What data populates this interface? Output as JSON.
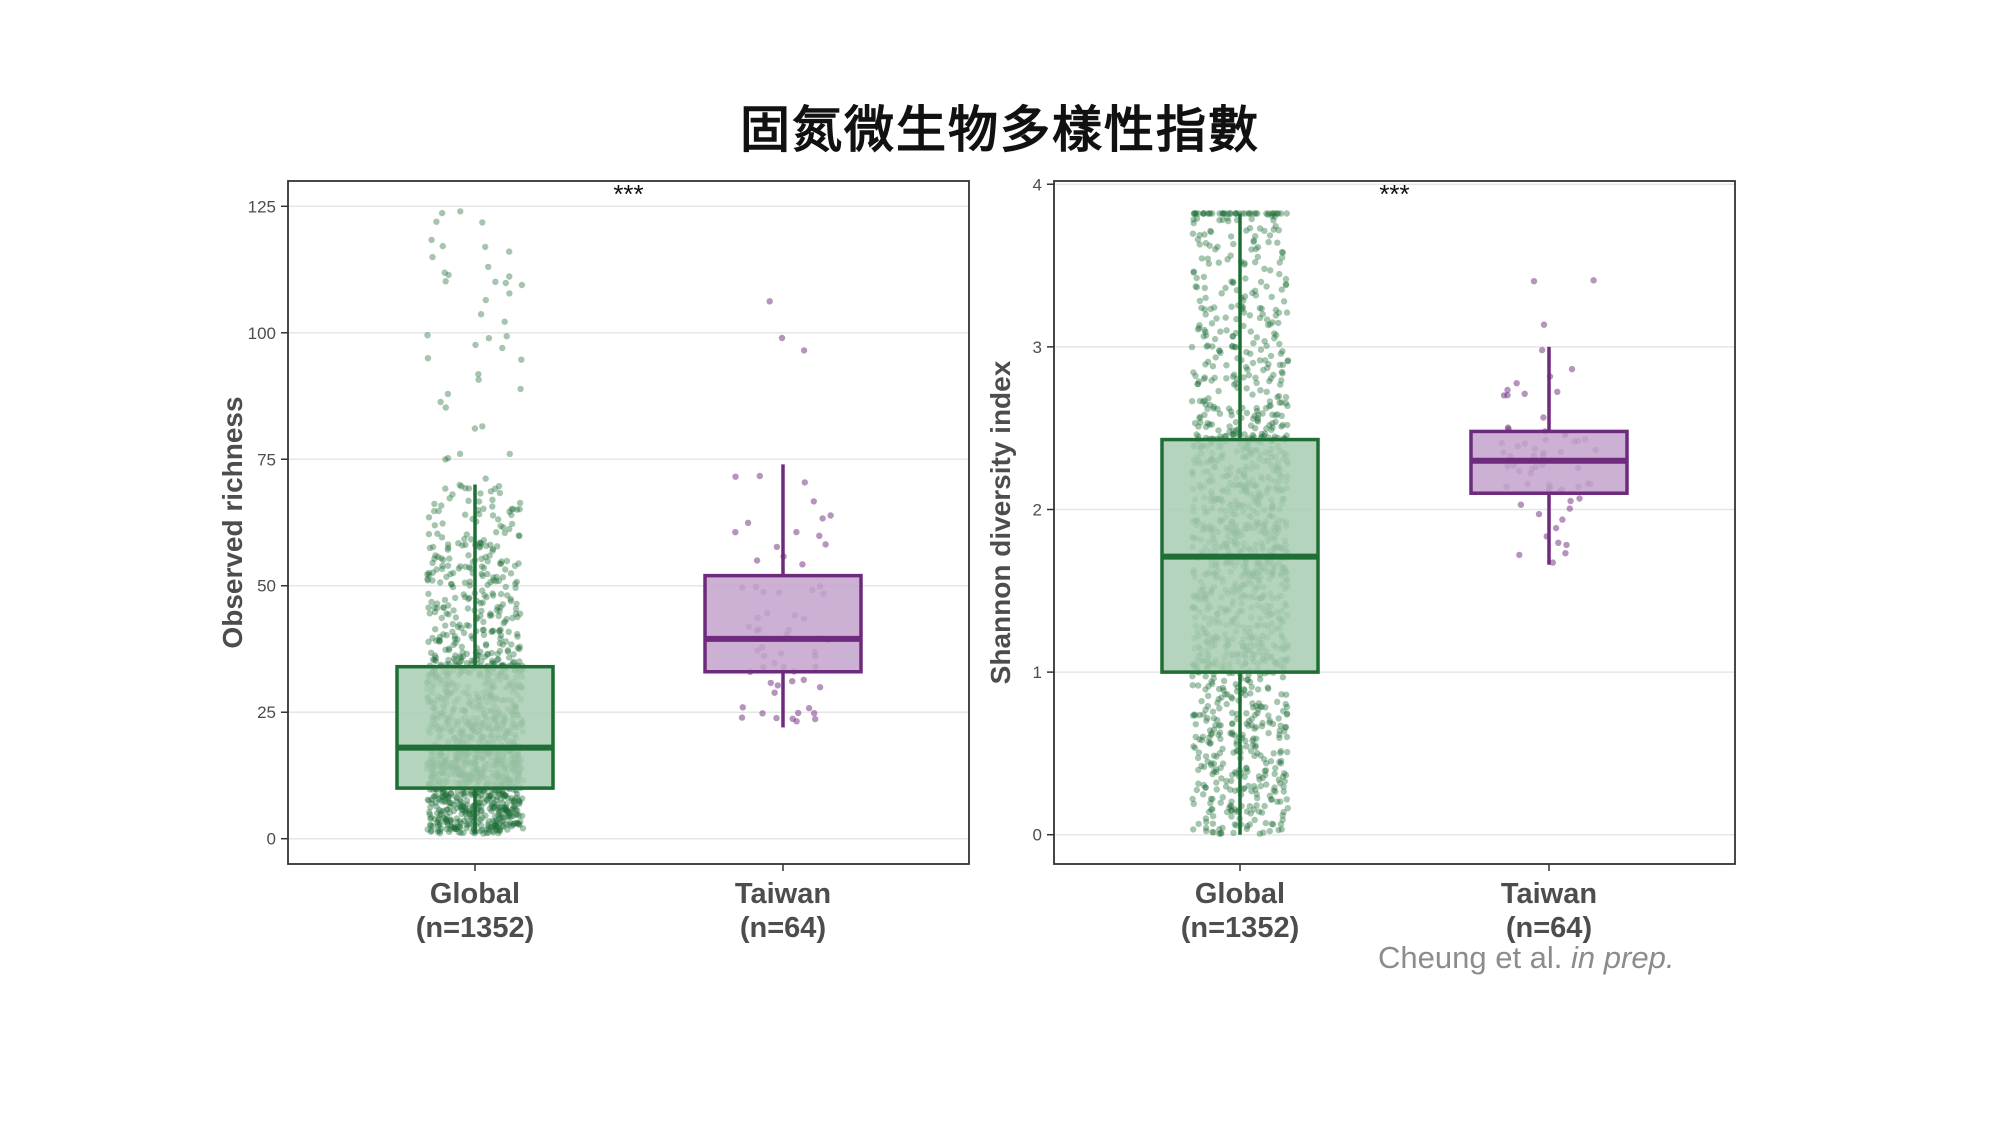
{
  "title": "固氮微生物多樣性指數",
  "citation": {
    "authors": "Cheung et al.",
    "status": "in prep."
  },
  "colors": {
    "global": "#1e6e36",
    "global_fill": "#a8cdb2",
    "taiwan": "#6e2a7c",
    "taiwan_fill": "#c4a3cc",
    "grid": "#e6e6e6",
    "panel_border": "#333333"
  },
  "chart_data": [
    {
      "type": "box",
      "ylabel": "Observed richness",
      "ylim": [
        -5,
        130
      ],
      "yticks": [
        0,
        25,
        50,
        75,
        100,
        125
      ],
      "significance": "***",
      "categories": [
        "Global\n(n=1352)",
        "Taiwan\n(n=64)"
      ],
      "category_labels": [
        {
          "name": "Global",
          "n": "(n=1352)"
        },
        {
          "name": "Taiwan",
          "n": "(n=64)"
        }
      ],
      "series": [
        {
          "group": "Global",
          "n": 1352,
          "whisker_low": 1,
          "q1": 10,
          "median": 18,
          "q3": 34,
          "whisker_high": 70,
          "point_max": 124
        },
        {
          "group": "Taiwan",
          "n": 64,
          "whisker_low": 22,
          "q1": 33,
          "median": 39.5,
          "q3": 52,
          "whisker_high": 74,
          "point_max": 107
        }
      ],
      "grid": true
    },
    {
      "type": "box",
      "ylabel": "Shannon diversity index",
      "ylim": [
        -0.18,
        4.02
      ],
      "yticks": [
        0,
        1,
        2,
        3,
        4
      ],
      "significance": "***",
      "categories": [
        "Global\n(n=1352)",
        "Taiwan\n(n=64)"
      ],
      "category_labels": [
        {
          "name": "Global",
          "n": "(n=1352)"
        },
        {
          "name": "Taiwan",
          "n": "(n=64)"
        }
      ],
      "series": [
        {
          "group": "Global",
          "n": 1352,
          "whisker_low": 0,
          "q1": 1.0,
          "median": 1.71,
          "q3": 2.43,
          "whisker_high": 3.82,
          "point_max": 3.82
        },
        {
          "group": "Taiwan",
          "n": 64,
          "whisker_low": 1.66,
          "q1": 2.1,
          "median": 2.3,
          "q3": 2.48,
          "whisker_high": 3.0,
          "point_max": 3.47
        }
      ],
      "grid": true
    }
  ]
}
